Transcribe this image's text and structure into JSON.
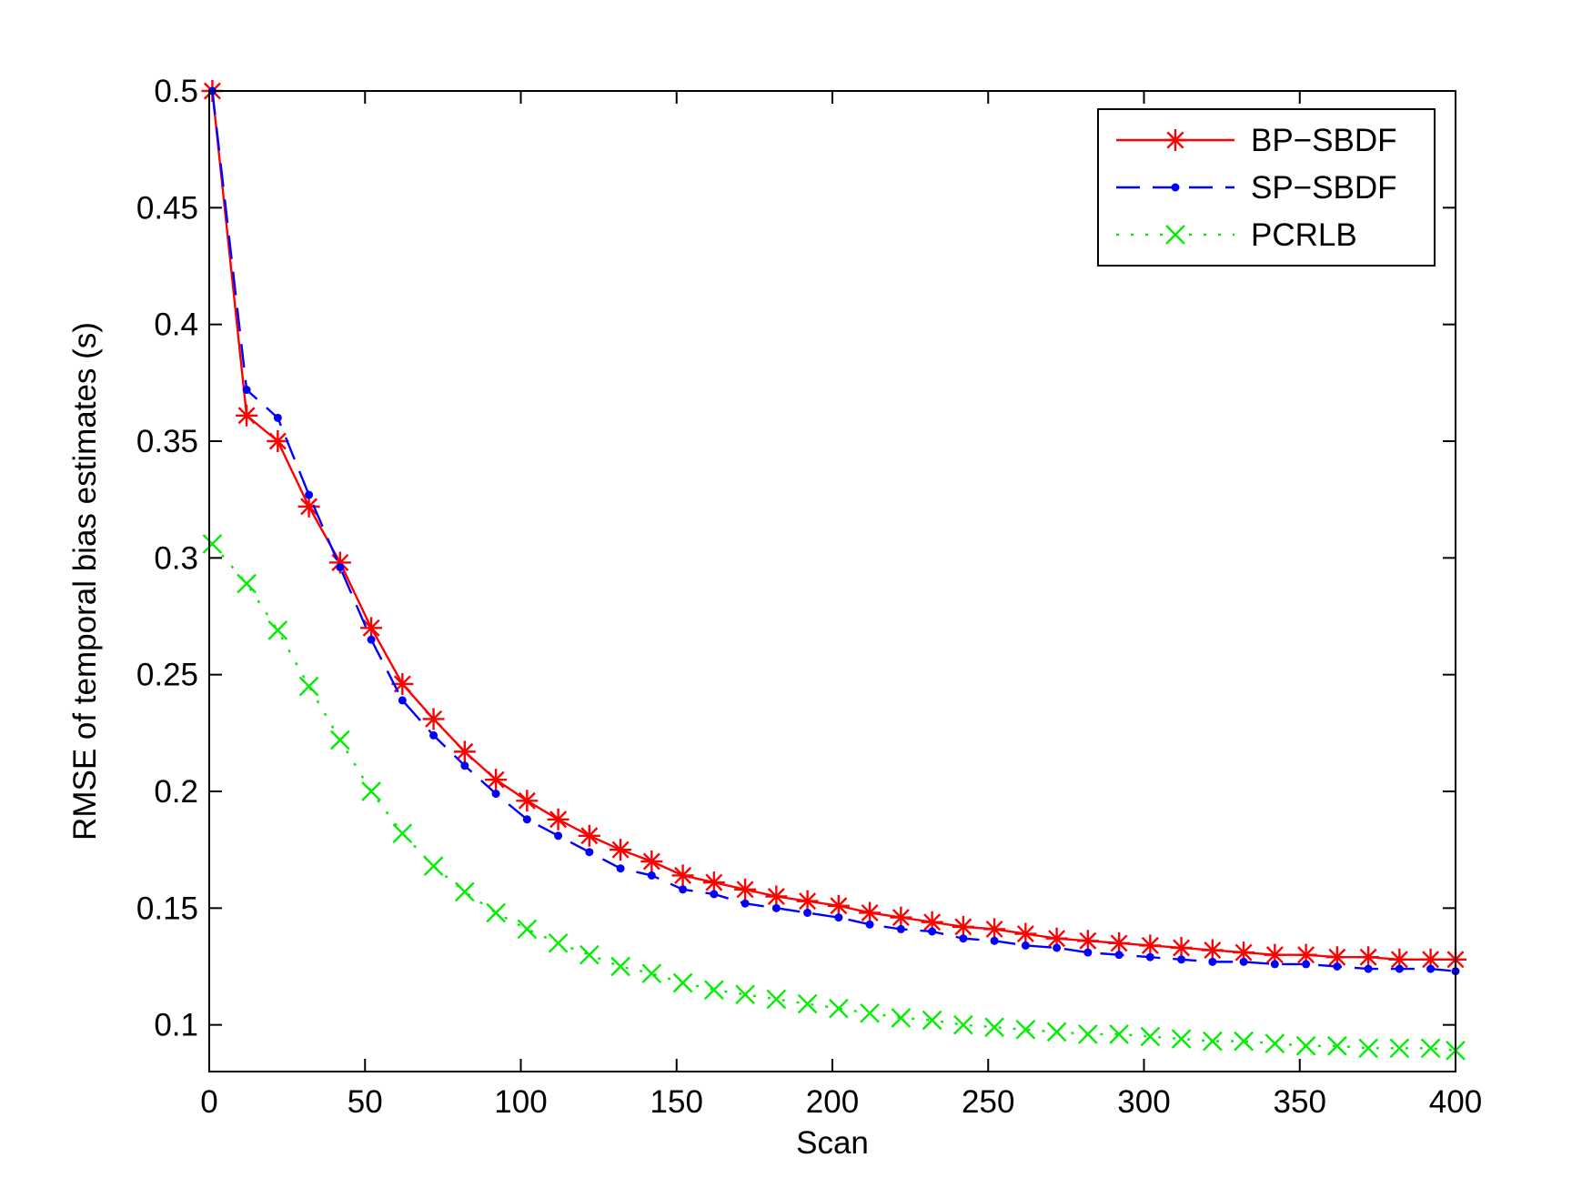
{
  "chart_data": {
    "type": "line",
    "title": "",
    "xlabel": "Scan",
    "ylabel": "RMSE of temporal bias estimates (s)",
    "xlim": [
      0,
      400
    ],
    "ylim": [
      0.08,
      0.5
    ],
    "xticks": [
      0,
      50,
      100,
      150,
      200,
      250,
      300,
      350,
      400
    ],
    "yticks": [
      0.1,
      0.15,
      0.2,
      0.25,
      0.3,
      0.35,
      0.4,
      0.45,
      0.5
    ],
    "xtick_labels": [
      "0",
      "50",
      "100",
      "150",
      "200",
      "250",
      "300",
      "350",
      "400"
    ],
    "ytick_labels": [
      "0.1",
      "0.15",
      "0.2",
      "0.25",
      "0.3",
      "0.35",
      "0.4",
      "0.45",
      "0.5"
    ],
    "grid": false,
    "legend_position": "top-right",
    "x": [
      1,
      12,
      22,
      32,
      42,
      52,
      62,
      72,
      82,
      92,
      102,
      112,
      122,
      132,
      142,
      152,
      162,
      172,
      182,
      192,
      202,
      212,
      222,
      232,
      242,
      252,
      262,
      272,
      282,
      292,
      302,
      312,
      322,
      332,
      342,
      352,
      362,
      372,
      382,
      392,
      400
    ],
    "series": [
      {
        "name": "BP−SBDF",
        "color": "#ff0000",
        "line_style": "solid",
        "marker": "asterisk",
        "values": [
          0.5,
          0.361,
          0.35,
          0.322,
          0.298,
          0.27,
          0.246,
          0.231,
          0.217,
          0.205,
          0.196,
          0.188,
          0.181,
          0.175,
          0.17,
          0.164,
          0.161,
          0.158,
          0.155,
          0.153,
          0.151,
          0.148,
          0.146,
          0.144,
          0.142,
          0.141,
          0.139,
          0.137,
          0.136,
          0.135,
          0.134,
          0.133,
          0.132,
          0.131,
          0.13,
          0.13,
          0.129,
          0.129,
          0.128,
          0.128,
          0.128
        ]
      },
      {
        "name": "SP−SBDF",
        "color": "#0000ff",
        "line_style": "dashed",
        "marker": "point",
        "values": [
          0.5,
          0.372,
          0.36,
          0.327,
          0.296,
          0.265,
          0.239,
          0.224,
          0.211,
          0.199,
          0.188,
          0.181,
          0.174,
          0.167,
          0.164,
          0.158,
          0.156,
          0.152,
          0.15,
          0.148,
          0.146,
          0.143,
          0.141,
          0.14,
          0.137,
          0.136,
          0.134,
          0.133,
          0.131,
          0.13,
          0.129,
          0.128,
          0.127,
          0.127,
          0.126,
          0.126,
          0.125,
          0.124,
          0.124,
          0.124,
          0.123
        ]
      },
      {
        "name": "PCRLB",
        "color": "#00ee00",
        "line_style": "dotted",
        "marker": "x",
        "values": [
          0.306,
          0.289,
          0.269,
          0.245,
          0.222,
          0.2,
          0.182,
          0.168,
          0.157,
          0.148,
          0.141,
          0.135,
          0.13,
          0.125,
          0.122,
          0.118,
          0.115,
          0.113,
          0.111,
          0.109,
          0.107,
          0.105,
          0.103,
          0.102,
          0.1,
          0.099,
          0.098,
          0.097,
          0.096,
          0.096,
          0.095,
          0.094,
          0.093,
          0.093,
          0.092,
          0.091,
          0.091,
          0.09,
          0.09,
          0.09,
          0.089
        ]
      }
    ]
  }
}
